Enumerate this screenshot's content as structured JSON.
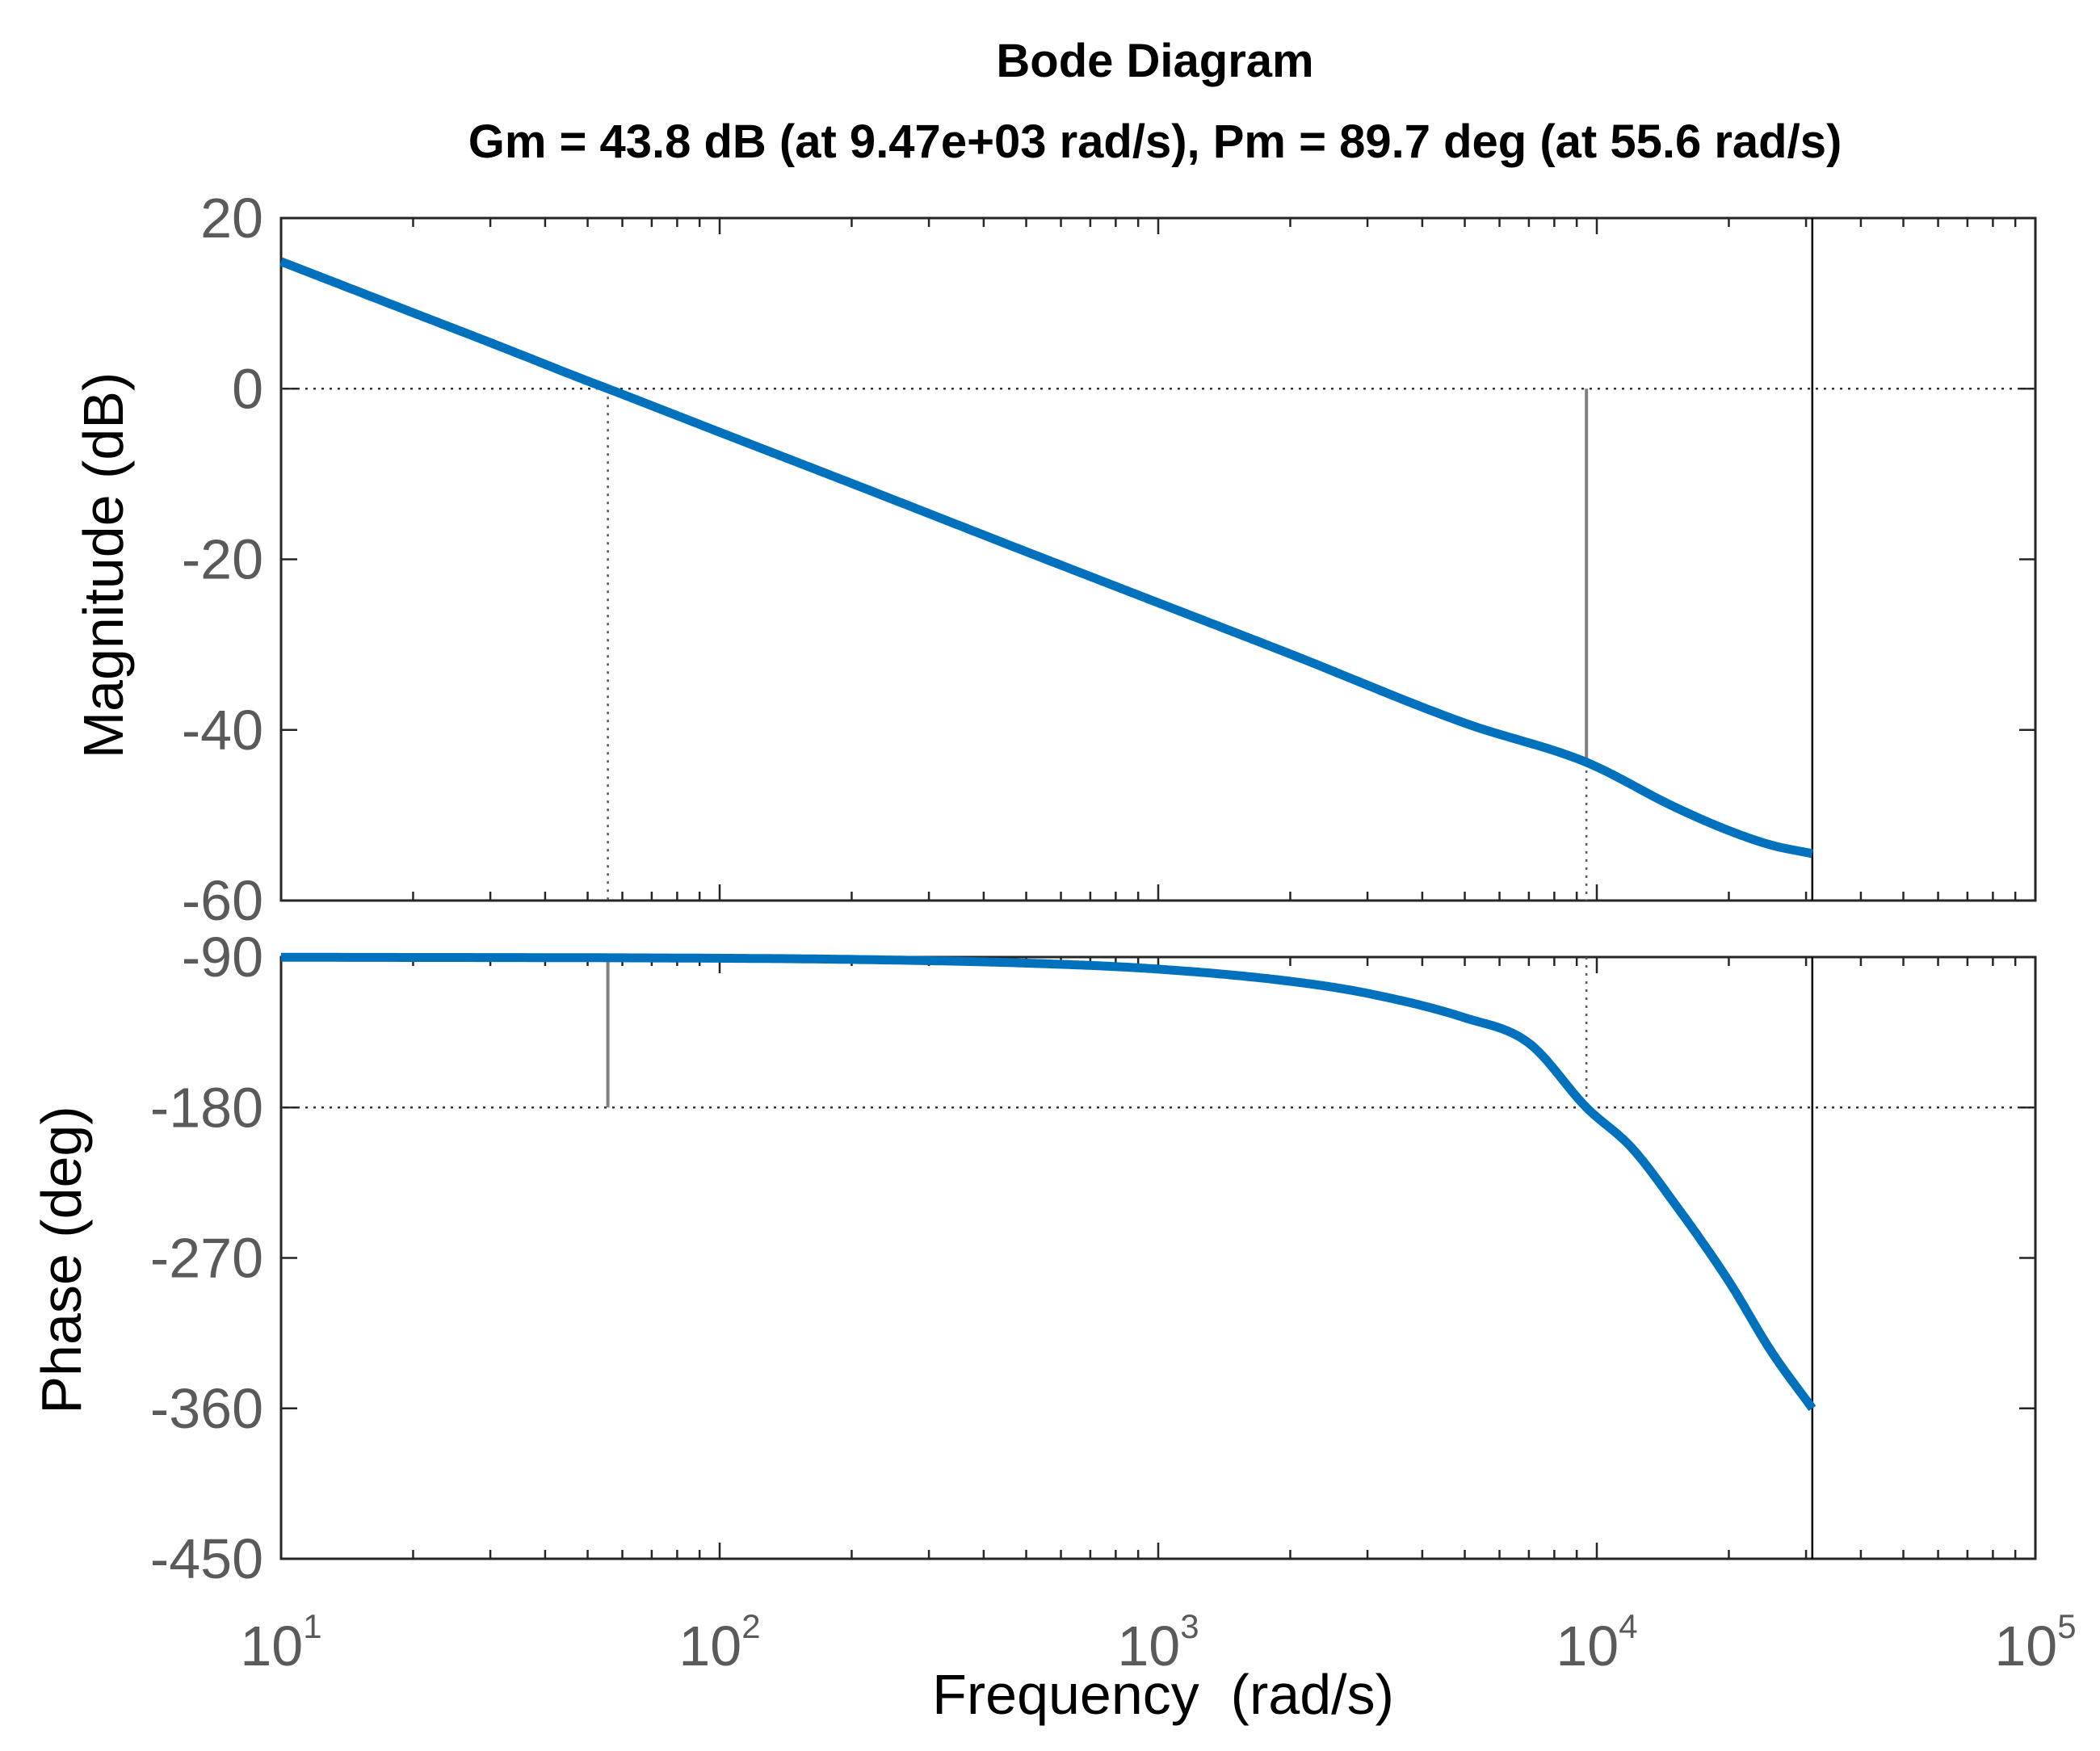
{
  "chart_data": {
    "type": "line",
    "title": "Bode Diagram",
    "subtitle": "Gm = 43.8 dB (at 9.47e+03 rad/s),  Pm = 89.7 deg (at 55.6 rad/s)",
    "xlabel": "Frequency  (rad/s)",
    "xscale": "log",
    "xlim": [
      10,
      100000
    ],
    "x_ticks": [
      {
        "value": 10,
        "base": "10",
        "exp": "1"
      },
      {
        "value": 100,
        "base": "10",
        "exp": "2"
      },
      {
        "value": 1000,
        "base": "10",
        "exp": "3"
      },
      {
        "value": 10000,
        "base": "10",
        "exp": "4"
      },
      {
        "value": 100000,
        "base": "10",
        "exp": "5"
      }
    ],
    "gain_margin": {
      "value_db": 43.8,
      "frequency": 9470
    },
    "phase_margin": {
      "value_deg": 89.7,
      "frequency": 55.6
    },
    "end_frequency": 31000,
    "magnitude": {
      "ylabel": "Magnitude (dB)",
      "ylim": [
        -60,
        20
      ],
      "y_ticks": [
        "20",
        "0",
        "-20",
        "-40",
        "-60"
      ],
      "y_tick_values": [
        20,
        0,
        -20,
        -40,
        -60
      ],
      "reference_level": 0,
      "series": [
        {
          "name": "Magnitude",
          "x": [
            10,
            20,
            30,
            50,
            55.6,
            100,
            200,
            500,
            1000,
            2000,
            5000,
            9470,
            15000,
            20000,
            25000,
            31000
          ],
          "values": [
            14.9,
            8.9,
            5.4,
            0.9,
            0.0,
            -5.1,
            -11.1,
            -19.1,
            -25.1,
            -31.1,
            -39.2,
            -43.8,
            -49.0,
            -51.8,
            -53.5,
            -54.5
          ]
        }
      ]
    },
    "phase": {
      "ylabel": "Phase (deg)",
      "ylim": [
        -450,
        -90
      ],
      "y_ticks": [
        "-90",
        "-180",
        "-270",
        "-360",
        "-450"
      ],
      "y_tick_values": [
        -90,
        -180,
        -270,
        -360,
        -450
      ],
      "reference_level": -180,
      "series": [
        {
          "name": "Phase",
          "x": [
            10,
            100,
            200,
            500,
            1000,
            2000,
            3000,
            5000,
            7000,
            9470,
            12000,
            15000,
            20000,
            25000,
            31000
          ],
          "values": [
            -90.1,
            -90.7,
            -91.4,
            -93.6,
            -97.2,
            -104.5,
            -111.7,
            -126.3,
            -141.5,
            -180.0,
            -204.0,
            -237.0,
            -284.0,
            -326.0,
            -360.0
          ]
        }
      ]
    },
    "colors": {
      "line": "#0072BD",
      "axes": "#262626",
      "marker": "#808080",
      "tick_text": "#5a5a5a"
    }
  }
}
